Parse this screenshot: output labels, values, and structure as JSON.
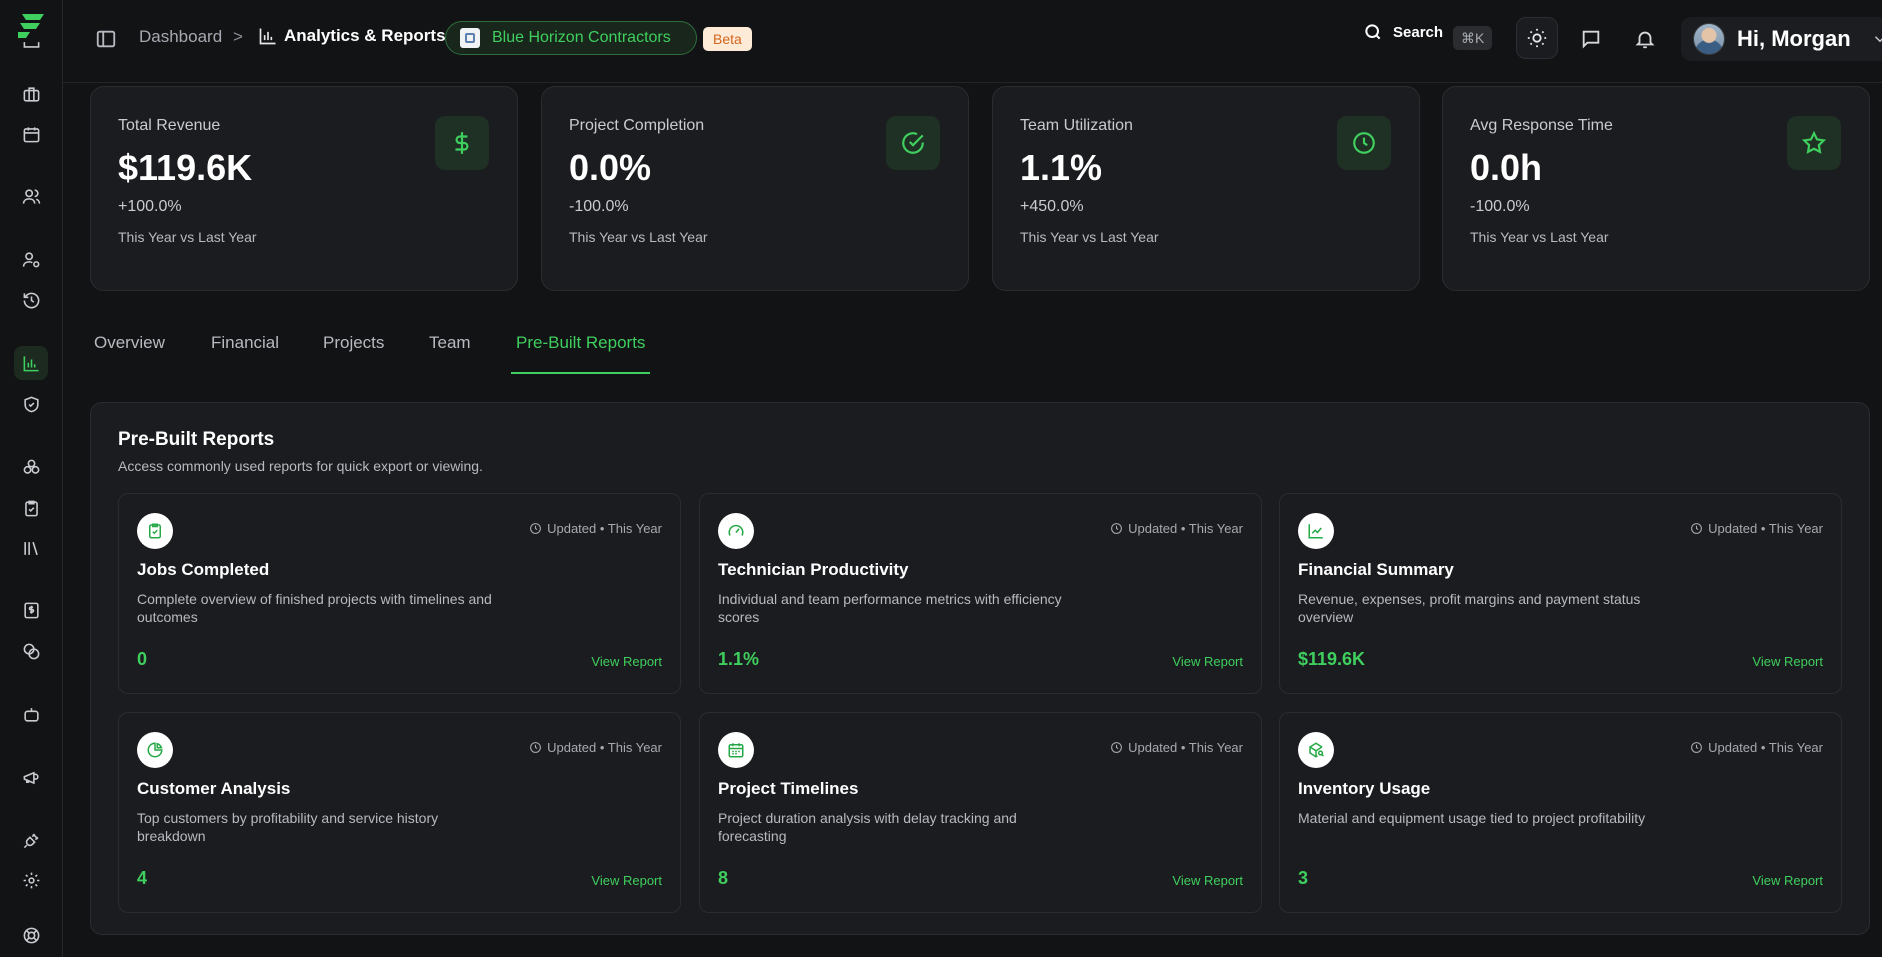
{
  "header": {
    "breadcrumb_root": "Dashboard",
    "breadcrumb_sep": ">",
    "page_title": "Analytics & Reports",
    "company": "Blue Horizon Contractors",
    "badge": "Beta",
    "search_label": "Search",
    "search_shortcut": "⌘K",
    "greeting": "Hi, Morgan"
  },
  "kpis": [
    {
      "label": "Total Revenue",
      "value": "$119.6K",
      "change": "+100.0%",
      "period": "This Year vs Last Year",
      "icon": "dollar-icon"
    },
    {
      "label": "Project Completion",
      "value": "0.0%",
      "change": "-100.0%",
      "period": "This Year vs Last Year",
      "icon": "check-circle-icon"
    },
    {
      "label": "Team Utilization",
      "value": "1.1%",
      "change": "+450.0%",
      "period": "This Year vs Last Year",
      "icon": "clock-icon"
    },
    {
      "label": "Avg Response Time",
      "value": "0.0h",
      "change": "-100.0%",
      "period": "This Year vs Last Year",
      "icon": "star-icon"
    }
  ],
  "tabs": [
    {
      "label": "Overview"
    },
    {
      "label": "Financial"
    },
    {
      "label": "Projects"
    },
    {
      "label": "Team"
    },
    {
      "label": "Pre-Built Reports"
    }
  ],
  "active_tab": "Pre-Built Reports",
  "reports_panel": {
    "title": "Pre-Built Reports",
    "subtitle": "Access commonly used reports for quick export or viewing.",
    "reports": [
      {
        "title": "Jobs Completed",
        "description": "Complete overview of finished projects with timelines and outcomes",
        "value": "0",
        "updated": "Updated • This Year",
        "link": "View Report",
        "icon": "clipboard-check-icon"
      },
      {
        "title": "Technician Productivity",
        "description": "Individual and team performance metrics with efficiency scores",
        "value": "1.1%",
        "updated": "Updated • This Year",
        "link": "View Report",
        "icon": "gauge-icon"
      },
      {
        "title": "Financial Summary",
        "description": "Revenue, expenses, profit margins and payment status overview",
        "value": "$119.6K",
        "updated": "Updated • This Year",
        "link": "View Report",
        "icon": "line-chart-icon"
      },
      {
        "title": "Customer Analysis",
        "description": "Top customers by profitability and service history breakdown",
        "value": "4",
        "updated": "Updated • This Year",
        "link": "View Report",
        "icon": "pie-chart-icon"
      },
      {
        "title": "Project Timelines",
        "description": "Project duration analysis with delay tracking and forecasting",
        "value": "8",
        "updated": "Updated • This Year",
        "link": "View Report",
        "icon": "calendar-icon"
      },
      {
        "title": "Inventory Usage",
        "description": "Material and equipment usage tied to project profitability",
        "value": "3",
        "updated": "Updated • This Year",
        "link": "View Report",
        "icon": "package-search-icon"
      }
    ]
  },
  "colors": {
    "accent": "#3fcf5e",
    "background": "#121315",
    "card": "#1b1c1f",
    "badge_bg": "#fdebd8",
    "badge_text": "#d2641c"
  }
}
